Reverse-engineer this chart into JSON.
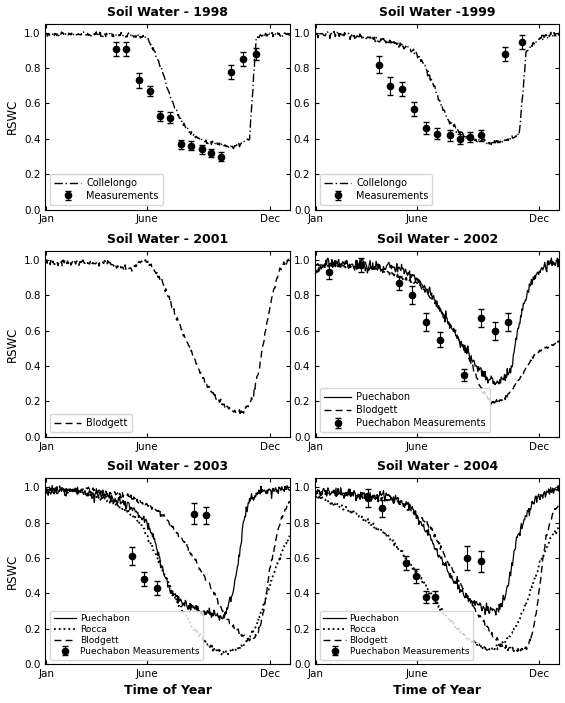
{
  "titles": [
    "Soil Water - 1998",
    "Soil Water -1999",
    "Soil Water - 2001",
    "Soil Water - 2002",
    "Soil Water - 2003",
    "Soil Water - 2004"
  ],
  "ylabel": "RSWC",
  "xlabel": "Time of Year",
  "xlim": [
    0,
    365
  ],
  "ylim": [
    0.0,
    1.05
  ],
  "yticks": [
    0.0,
    0.2,
    0.4,
    0.6,
    0.8,
    1.0
  ],
  "xtick_labels": [
    "Jan",
    "June",
    "Dec"
  ],
  "xtick_positions": [
    1,
    152,
    335
  ],
  "background_color": "#ffffff"
}
